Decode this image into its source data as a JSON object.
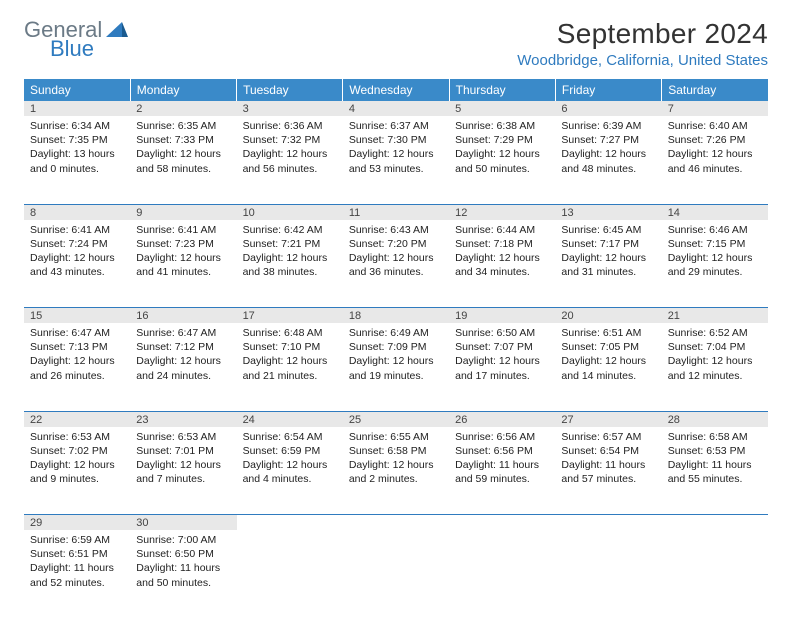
{
  "brand": {
    "word1": "General",
    "word2": "Blue"
  },
  "colors": {
    "header_bg": "#3a8ac9",
    "accent": "#2f7bbf",
    "daynum_bg": "#e8e8e8",
    "text": "#222222",
    "logo_gray": "#6b7a86"
  },
  "month_title": "September 2024",
  "location": "Woodbridge, California, United States",
  "day_headers": [
    "Sunday",
    "Monday",
    "Tuesday",
    "Wednesday",
    "Thursday",
    "Friday",
    "Saturday"
  ],
  "weeks": [
    [
      {
        "n": "1",
        "sr": "6:34 AM",
        "ss": "7:35 PM",
        "dl": "13 hours and 0 minutes."
      },
      {
        "n": "2",
        "sr": "6:35 AM",
        "ss": "7:33 PM",
        "dl": "12 hours and 58 minutes."
      },
      {
        "n": "3",
        "sr": "6:36 AM",
        "ss": "7:32 PM",
        "dl": "12 hours and 56 minutes."
      },
      {
        "n": "4",
        "sr": "6:37 AM",
        "ss": "7:30 PM",
        "dl": "12 hours and 53 minutes."
      },
      {
        "n": "5",
        "sr": "6:38 AM",
        "ss": "7:29 PM",
        "dl": "12 hours and 50 minutes."
      },
      {
        "n": "6",
        "sr": "6:39 AM",
        "ss": "7:27 PM",
        "dl": "12 hours and 48 minutes."
      },
      {
        "n": "7",
        "sr": "6:40 AM",
        "ss": "7:26 PM",
        "dl": "12 hours and 46 minutes."
      }
    ],
    [
      {
        "n": "8",
        "sr": "6:41 AM",
        "ss": "7:24 PM",
        "dl": "12 hours and 43 minutes."
      },
      {
        "n": "9",
        "sr": "6:41 AM",
        "ss": "7:23 PM",
        "dl": "12 hours and 41 minutes."
      },
      {
        "n": "10",
        "sr": "6:42 AM",
        "ss": "7:21 PM",
        "dl": "12 hours and 38 minutes."
      },
      {
        "n": "11",
        "sr": "6:43 AM",
        "ss": "7:20 PM",
        "dl": "12 hours and 36 minutes."
      },
      {
        "n": "12",
        "sr": "6:44 AM",
        "ss": "7:18 PM",
        "dl": "12 hours and 34 minutes."
      },
      {
        "n": "13",
        "sr": "6:45 AM",
        "ss": "7:17 PM",
        "dl": "12 hours and 31 minutes."
      },
      {
        "n": "14",
        "sr": "6:46 AM",
        "ss": "7:15 PM",
        "dl": "12 hours and 29 minutes."
      }
    ],
    [
      {
        "n": "15",
        "sr": "6:47 AM",
        "ss": "7:13 PM",
        "dl": "12 hours and 26 minutes."
      },
      {
        "n": "16",
        "sr": "6:47 AM",
        "ss": "7:12 PM",
        "dl": "12 hours and 24 minutes."
      },
      {
        "n": "17",
        "sr": "6:48 AM",
        "ss": "7:10 PM",
        "dl": "12 hours and 21 minutes."
      },
      {
        "n": "18",
        "sr": "6:49 AM",
        "ss": "7:09 PM",
        "dl": "12 hours and 19 minutes."
      },
      {
        "n": "19",
        "sr": "6:50 AM",
        "ss": "7:07 PM",
        "dl": "12 hours and 17 minutes."
      },
      {
        "n": "20",
        "sr": "6:51 AM",
        "ss": "7:05 PM",
        "dl": "12 hours and 14 minutes."
      },
      {
        "n": "21",
        "sr": "6:52 AM",
        "ss": "7:04 PM",
        "dl": "12 hours and 12 minutes."
      }
    ],
    [
      {
        "n": "22",
        "sr": "6:53 AM",
        "ss": "7:02 PM",
        "dl": "12 hours and 9 minutes."
      },
      {
        "n": "23",
        "sr": "6:53 AM",
        "ss": "7:01 PM",
        "dl": "12 hours and 7 minutes."
      },
      {
        "n": "24",
        "sr": "6:54 AM",
        "ss": "6:59 PM",
        "dl": "12 hours and 4 minutes."
      },
      {
        "n": "25",
        "sr": "6:55 AM",
        "ss": "6:58 PM",
        "dl": "12 hours and 2 minutes."
      },
      {
        "n": "26",
        "sr": "6:56 AM",
        "ss": "6:56 PM",
        "dl": "11 hours and 59 minutes."
      },
      {
        "n": "27",
        "sr": "6:57 AM",
        "ss": "6:54 PM",
        "dl": "11 hours and 57 minutes."
      },
      {
        "n": "28",
        "sr": "6:58 AM",
        "ss": "6:53 PM",
        "dl": "11 hours and 55 minutes."
      }
    ],
    [
      {
        "n": "29",
        "sr": "6:59 AM",
        "ss": "6:51 PM",
        "dl": "11 hours and 52 minutes."
      },
      {
        "n": "30",
        "sr": "7:00 AM",
        "ss": "6:50 PM",
        "dl": "11 hours and 50 minutes."
      },
      null,
      null,
      null,
      null,
      null
    ]
  ],
  "labels": {
    "sunrise": "Sunrise:",
    "sunset": "Sunset:",
    "daylight": "Daylight:"
  }
}
